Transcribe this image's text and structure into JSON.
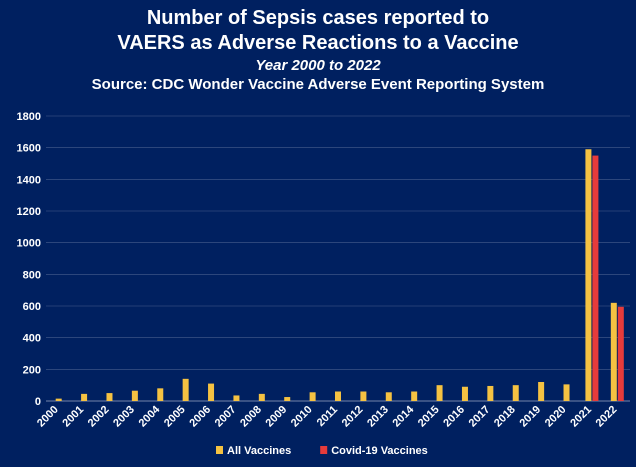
{
  "chart_data": {
    "type": "bar",
    "title_lines": [
      "Number of Sepsis cases reported to",
      "VAERS as Adverse Reactions to a Vaccine"
    ],
    "subtitle": "Year 2000 to 2022",
    "source": "Source: CDC Wonder Vaccine Adverse Event Reporting System",
    "categories": [
      "2000",
      "2001",
      "2002",
      "2003",
      "2004",
      "2005",
      "2006",
      "2007",
      "2008",
      "2009",
      "2010",
      "2011",
      "2012",
      "2013",
      "2014",
      "2015",
      "2016",
      "2017",
      "2018",
      "2019",
      "2020",
      "2021",
      "2022"
    ],
    "series": [
      {
        "name": "All Vaccines",
        "color": "#f5c242",
        "values": [
          15,
          45,
          50,
          65,
          80,
          140,
          110,
          35,
          45,
          25,
          55,
          60,
          60,
          55,
          60,
          100,
          90,
          95,
          100,
          120,
          105,
          1590,
          620
        ]
      },
      {
        "name": "Covid-19 Vaccines",
        "color": "#e63b3b",
        "values": [
          null,
          null,
          null,
          null,
          null,
          null,
          null,
          null,
          null,
          null,
          null,
          null,
          null,
          null,
          null,
          null,
          null,
          null,
          null,
          null,
          null,
          1550,
          595
        ]
      }
    ],
    "ylim": [
      0,
      1800
    ],
    "yticks": [
      0,
      200,
      400,
      600,
      800,
      1000,
      1200,
      1400,
      1600,
      1800
    ],
    "grid": true,
    "legend_position": "bottom"
  }
}
